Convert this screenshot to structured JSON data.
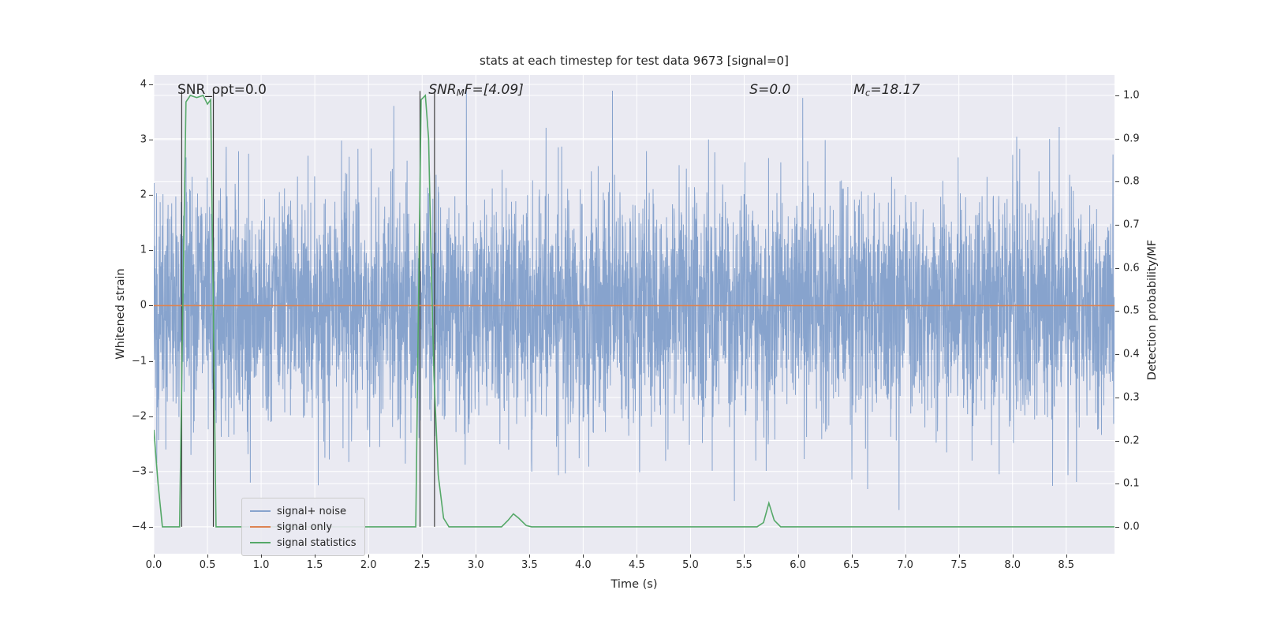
{
  "figure": {
    "title": "stats at each timestep for test data 9673 [signal=0]",
    "xlabel": "Time (s)",
    "ylabel_left": "Whitened strain",
    "ylabel_right": "Detection probability/MF"
  },
  "chart_data": {
    "type": "line",
    "title": "stats at each timestep for test data 9673 [signal=0]",
    "xlabel": "Time (s)",
    "ylabel_left": "Whitened strain",
    "ylabel_right": "Detection probability/MF",
    "background": "#eaeaf2",
    "grid": true,
    "xlim": [
      0,
      8.95
    ],
    "ylim_left": [
      -4.486,
      4.171
    ],
    "right_axis": {
      "lim": [
        0,
        1
      ],
      "p0_strain": -4.0,
      "p1_strain": 3.8
    },
    "xticks": [
      0,
      0.5,
      1,
      1.5,
      2,
      2.5,
      3,
      3.5,
      4,
      4.5,
      5,
      5.5,
      6,
      6.5,
      7,
      7.5,
      8,
      8.5
    ],
    "xtick_labels": [
      "0.0",
      "0.5",
      "1.0",
      "1.5",
      "2.0",
      "2.5",
      "3.0",
      "3.5",
      "4.0",
      "4.5",
      "5.0",
      "5.5",
      "6.0",
      "6.5",
      "7.0",
      "7.5",
      "8.0",
      "8.5"
    ],
    "yticks_left": [
      4,
      3,
      2,
      1,
      0,
      -1,
      -2,
      -3,
      -4
    ],
    "ytick_labels_left": [
      "4",
      "3",
      "2",
      "1",
      "0",
      "−1",
      "−2",
      "−3",
      "−4"
    ],
    "yticks_right": [
      1.0,
      0.9,
      0.8,
      0.7,
      0.6,
      0.5,
      0.4,
      0.3,
      0.2,
      0.1,
      0.0
    ],
    "ytick_labels_right": [
      "1.0",
      "0.9",
      "0.8",
      "0.7",
      "0.6",
      "0.5",
      "0.4",
      "0.3",
      "0.2",
      "0.1",
      "0.0"
    ],
    "stats": {
      "SNR_opt": 0.0,
      "SNR_MF": [
        4.09
      ],
      "S": 0.0,
      "Mc": 18.17
    },
    "annotations": [
      {
        "x": 0.22,
        "italic": false,
        "segments": [
          {
            "t": "SNR_opt=0.0"
          }
        ]
      },
      {
        "x": 2.56,
        "italic": true,
        "segments": [
          {
            "t": "SNR"
          },
          {
            "t": "M",
            "sub": true
          },
          {
            "t": "F=[4.09]"
          }
        ]
      },
      {
        "x": 5.55,
        "italic": true,
        "segments": [
          {
            "t": "S=0.0"
          }
        ]
      },
      {
        "x": 6.52,
        "italic": true,
        "segments": [
          {
            "t": "M"
          },
          {
            "t": "c",
            "sub": true
          },
          {
            "t": "=18.17"
          }
        ]
      }
    ],
    "vlines": {
      "x": [
        0.26,
        0.555,
        2.48,
        2.615
      ],
      "color": "#3d3d3d"
    },
    "series": [
      {
        "name": "signal+ noise",
        "kind": "noise",
        "color": "#87a3cd",
        "seed": 9673,
        "n": 4500,
        "std": 1.05,
        "clip": 4.1
      },
      {
        "name": "signal only",
        "kind": "hline",
        "y": 0,
        "color": "#dd8452"
      },
      {
        "name": "signal statistics",
        "kind": "prob_line",
        "color": "#55a868",
        "points_tp": [
          [
            0,
            0.225
          ],
          [
            0.04,
            0.1
          ],
          [
            0.08,
            0
          ],
          [
            0.24,
            0
          ],
          [
            0.27,
            0.5
          ],
          [
            0.3,
            0.985
          ],
          [
            0.34,
            1.0
          ],
          [
            0.4,
            0.995
          ],
          [
            0.46,
            1.0
          ],
          [
            0.5,
            0.98
          ],
          [
            0.53,
            0.99
          ],
          [
            0.555,
            0.5
          ],
          [
            0.58,
            0
          ],
          [
            2.44,
            0
          ],
          [
            2.465,
            0.5
          ],
          [
            2.49,
            0.99
          ],
          [
            2.53,
            1.0
          ],
          [
            2.56,
            0.9
          ],
          [
            2.585,
            0.6
          ],
          [
            2.61,
            0.35
          ],
          [
            2.65,
            0.12
          ],
          [
            2.7,
            0.02
          ],
          [
            2.75,
            0
          ],
          [
            3.24,
            0
          ],
          [
            3.3,
            0.015
          ],
          [
            3.35,
            0.03
          ],
          [
            3.4,
            0.02
          ],
          [
            3.47,
            0.003
          ],
          [
            3.52,
            0
          ],
          [
            5.62,
            0
          ],
          [
            5.68,
            0.01
          ],
          [
            5.73,
            0.055
          ],
          [
            5.78,
            0.015
          ],
          [
            5.84,
            0
          ],
          [
            8.95,
            0
          ]
        ]
      }
    ],
    "legend": {
      "position": "lower-left-inside",
      "items": [
        {
          "label": "signal+ noise",
          "color": "#87a3cd"
        },
        {
          "label": "signal only",
          "color": "#dd8452"
        },
        {
          "label": "signal statistics",
          "color": "#55a868"
        }
      ]
    }
  }
}
